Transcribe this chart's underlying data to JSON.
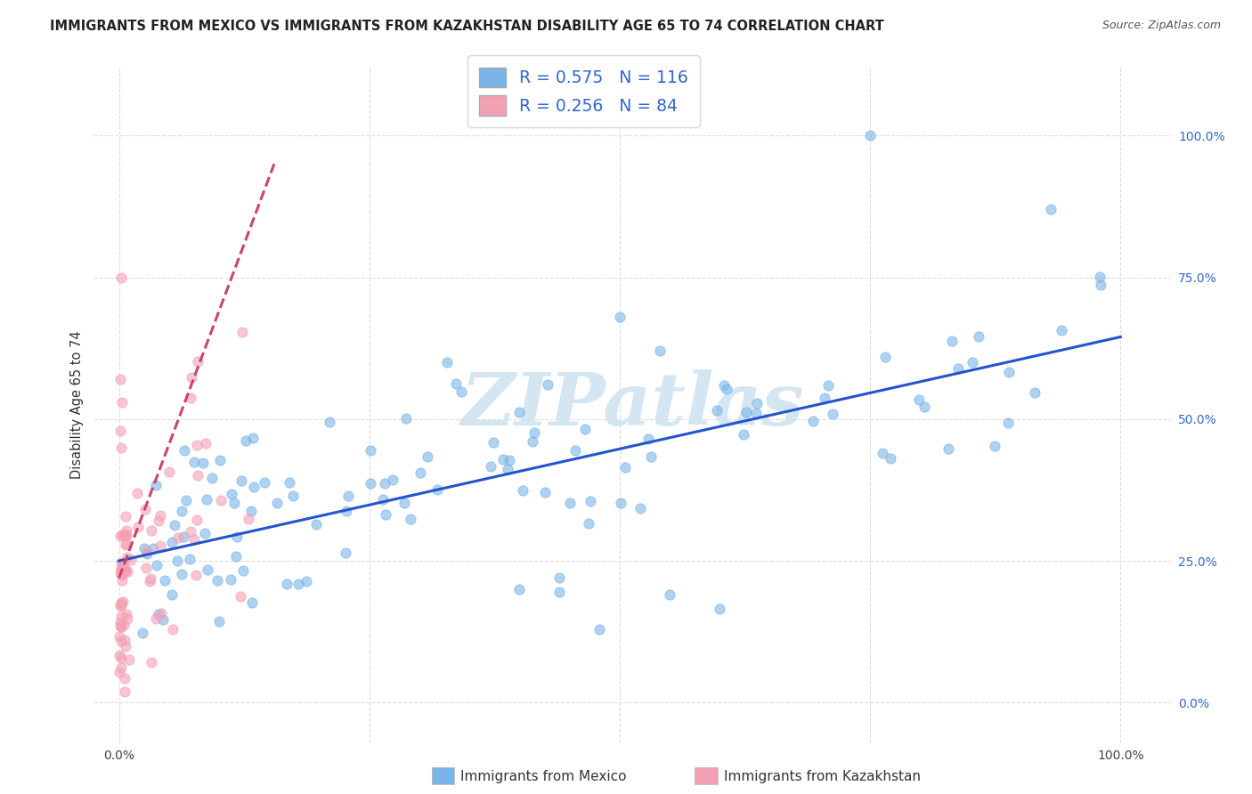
{
  "title": "IMMIGRANTS FROM MEXICO VS IMMIGRANTS FROM KAZAKHSTAN DISABILITY AGE 65 TO 74 CORRELATION CHART",
  "source": "Source: ZipAtlas.com",
  "ylabel": "Disability Age 65 to 74",
  "legend_mexico": "Immigrants from Mexico",
  "legend_kazakhstan": "Immigrants from Kazakhstan",
  "r_mexico": 0.575,
  "n_mexico": 116,
  "r_kazakhstan": 0.256,
  "n_kazakhstan": 84,
  "color_mexico": "#7ab4e8",
  "color_kazakhstan": "#f4a0b4",
  "color_line_mexico": "#2255cc",
  "color_line_kazakhstan": "#cc4466",
  "watermark_color": "#ccddee",
  "background_color": "#ffffff",
  "grid_color": "#dddddd",
  "xlim": [
    -0.025,
    1.05
  ],
  "ylim": [
    -0.07,
    1.12
  ],
  "x_ticks": [
    0.0,
    1.0
  ],
  "x_tick_labels": [
    "0.0%",
    "100.0%"
  ],
  "y_ticks_right": [
    0.0,
    0.25,
    0.5,
    0.75,
    1.0
  ],
  "y_tick_labels_right": [
    "0.0%",
    "25.0%",
    "50.0%",
    "75.0%",
    "100.0%"
  ],
  "mexico_line_x0": 0.0,
  "mexico_line_y0": 0.25,
  "mexico_line_x1": 1.0,
  "mexico_line_y1": 0.645,
  "kazakhstan_line_x0": 0.0,
  "kazakhstan_line_y0": 0.22,
  "kazakhstan_line_x1": 0.155,
  "kazakhstan_line_y1": 0.95
}
